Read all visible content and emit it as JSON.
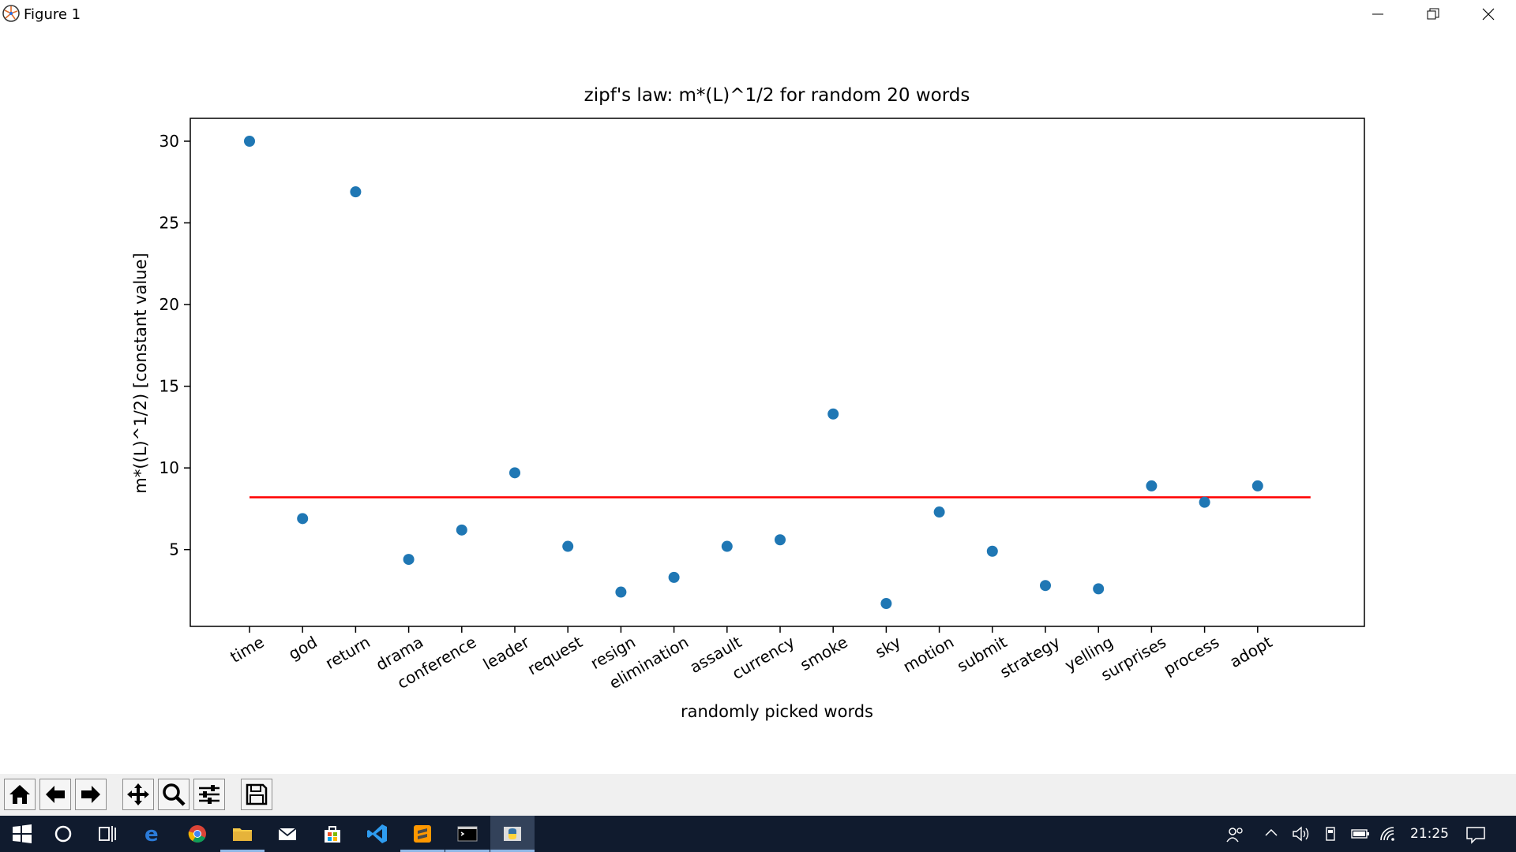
{
  "window": {
    "title": "Figure 1"
  },
  "chart_data": {
    "type": "scatter",
    "title": "zipf's law: m*(L)^1/2 for random 20 words",
    "xlabel": "randomly picked words",
    "ylabel": "m*((L)^1/2)  [constant value]",
    "categories": [
      "time",
      "god",
      "return",
      "drama",
      "conference",
      "leader",
      "request",
      "resign",
      "elimination",
      "assault",
      "currency",
      "smoke",
      "sky",
      "motion",
      "submit",
      "strategy",
      "yelling",
      "surprises",
      "process",
      "adopt"
    ],
    "values": [
      30.0,
      6.9,
      26.9,
      4.4,
      6.2,
      9.7,
      5.2,
      2.4,
      3.3,
      5.2,
      5.6,
      13.3,
      1.7,
      7.3,
      4.9,
      2.8,
      2.6,
      8.9,
      7.9,
      8.9
    ],
    "yticks": [
      5,
      10,
      15,
      20,
      25,
      30
    ],
    "ylim": [
      0.3,
      31.4
    ],
    "marker_color": "#1f77b4",
    "mean_line": {
      "y": 8.2,
      "color": "#ff0000"
    },
    "grid": false
  },
  "toolbar": [
    "home-icon",
    "back-icon",
    "forward-icon",
    "pan-icon",
    "zoom-icon",
    "configure-icon",
    "save-icon"
  ],
  "taskbar": {
    "time": "21:25"
  }
}
